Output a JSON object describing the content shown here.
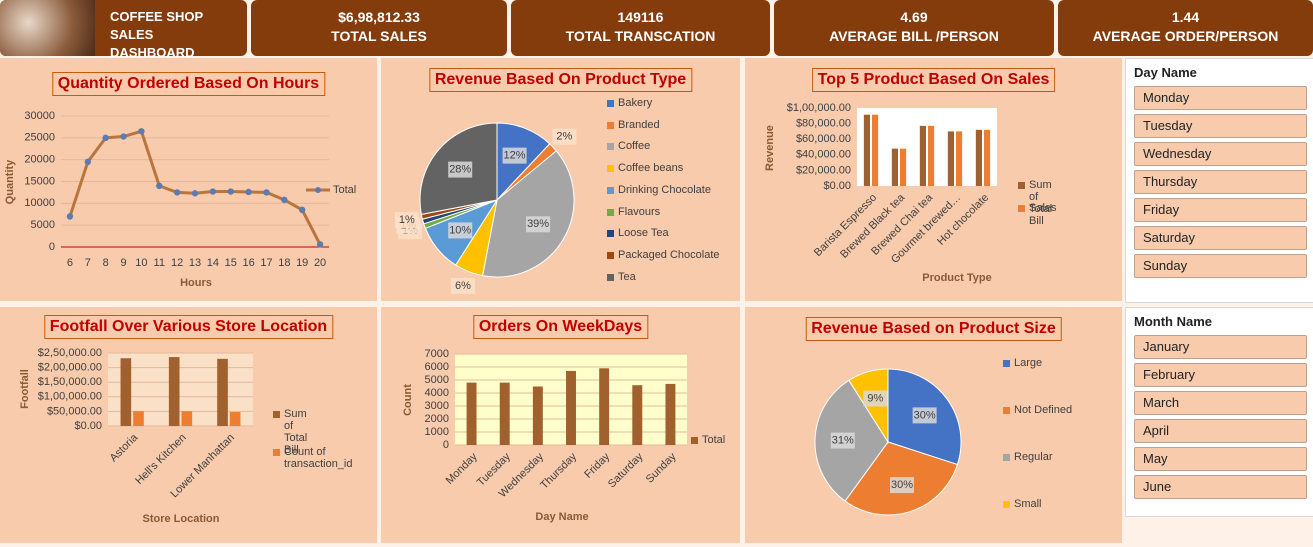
{
  "header": {
    "title": "COFFEE SHOP SALES DASHBOARD"
  },
  "kpis": [
    {
      "value": "$6,98,812.33",
      "label": "TOTAL SALES"
    },
    {
      "value": "149116",
      "label": "TOTAL TRANSCATION"
    },
    {
      "value": "4.69",
      "label": "AVERAGE BILL /PERSON"
    },
    {
      "value": "1.44",
      "label": "AVERAGE ORDER/PERSON"
    }
  ],
  "slicers": [
    {
      "title": "Day Name",
      "items": [
        "Monday",
        "Tuesday",
        "Wednesday",
        "Thursday",
        "Friday",
        "Saturday",
        "Sunday"
      ]
    },
    {
      "title": "Month Name",
      "items": [
        "January",
        "February",
        "March",
        "April",
        "May",
        "June"
      ]
    }
  ],
  "chart_data": [
    {
      "type": "line",
      "title": "Quantity Ordered Based On Hours",
      "x_label": "Hours",
      "y_label": "Quantity",
      "x": [
        6,
        7,
        8,
        9,
        10,
        11,
        12,
        13,
        14,
        15,
        16,
        17,
        18,
        19,
        20
      ],
      "series": [
        {
          "name": "Total",
          "color": "#b8763e",
          "marker_color": "#5b7bb3",
          "values": [
            7000,
            19500,
            25000,
            25300,
            26500,
            14000,
            12500,
            12300,
            12700,
            12700,
            12600,
            12500,
            10800,
            8500,
            600
          ]
        }
      ],
      "xlim": [
        5.5,
        20.5
      ],
      "xticks": [
        6,
        7,
        8,
        9,
        10,
        11,
        12,
        13,
        14,
        15,
        16,
        17,
        18,
        19,
        20
      ],
      "ylim": [
        0,
        30000
      ],
      "yticks": [
        0,
        5000,
        10000,
        15000,
        20000,
        25000,
        30000
      ],
      "grid": true,
      "legend": "right"
    },
    {
      "type": "pie",
      "title": "Revenue Based On Product Type",
      "categories": [
        "Bakery",
        "Branded",
        "Coffee",
        "Coffee beans",
        "Drinking Chocolate",
        "Flavours",
        "Loose Tea",
        "Packaged Chocolate",
        "Tea"
      ],
      "values": [
        12,
        2,
        39,
        6,
        10,
        1,
        1,
        1,
        28
      ],
      "value_labels": [
        "12%",
        "2%",
        "39%",
        "6%",
        "10%",
        "1%",
        "1%",
        "1%",
        "28%"
      ],
      "colors": [
        "#4472c4",
        "#ed7d31",
        "#a5a5a5",
        "#ffc000",
        "#5b9bd5",
        "#70ad47",
        "#264478",
        "#9e480e",
        "#636363"
      ],
      "legend": "right"
    },
    {
      "type": "bar",
      "title": "Top 5 Product Based On Sales",
      "x_label": "Product Type",
      "y_label": "Revenue",
      "categories": [
        "Barista Espresso",
        "Brewed Black tea",
        "Brewed Chai tea",
        "Gourmet brewed…",
        "Hot chocolate"
      ],
      "series": [
        {
          "name": "Sum of Total Bill",
          "color": "#a0612e",
          "values": [
            91400,
            47900,
            77100,
            70000,
            72000
          ]
        },
        {
          "name": "Sales",
          "color": "#ed7d31",
          "values": [
            91400,
            47900,
            77100,
            70000,
            72000
          ]
        }
      ],
      "ylim": [
        0,
        100000
      ],
      "yticks": [
        {
          "value": 0,
          "label": "$0.00"
        },
        {
          "value": 20000,
          "label": "$20,000.00"
        },
        {
          "value": 40000,
          "label": "$40,000.00"
        },
        {
          "value": 60000,
          "label": "$60,000.00"
        },
        {
          "value": 80000,
          "label": "$80,000.00"
        },
        {
          "value": 100000,
          "label": "$1,00,000.00"
        }
      ],
      "grid": false,
      "legend": "right",
      "plot_color": "#ffffff"
    },
    {
      "type": "bar",
      "title": "Footfall Over Various Store Location",
      "x_label": "Store Location",
      "y_label": "Footfall",
      "categories": [
        "Astoria",
        "Hell's Kitchen",
        "Lower Manhattan"
      ],
      "series": [
        {
          "name": "Sum of Total Bill",
          "color": "#a0612e",
          "values": [
            232000,
            236000,
            230000
          ]
        },
        {
          "name": "Count of transaction_id",
          "color": "#ed7d31",
          "values": [
            50600,
            50700,
            47800
          ]
        }
      ],
      "ylim": [
        0,
        250000
      ],
      "yticks": [
        {
          "value": 0,
          "label": "$0.00"
        },
        {
          "value": 50000,
          "label": "$50,000.00"
        },
        {
          "value": 100000,
          "label": "$1,00,000.00"
        },
        {
          "value": 150000,
          "label": "$1,50,000.00"
        },
        {
          "value": 200000,
          "label": "$2,00,000.00"
        },
        {
          "value": 250000,
          "label": "$2,50,000.00"
        }
      ],
      "grid": true,
      "legend": "right",
      "plot_color": "#fbe0c8"
    },
    {
      "type": "bar",
      "title": "Orders On WeekDays",
      "x_label": "Day Name",
      "y_label": "Count",
      "categories": [
        "Monday",
        "Tuesday",
        "Wednesday",
        "Thursday",
        "Friday",
        "Saturday",
        "Sunday"
      ],
      "series": [
        {
          "name": "Total",
          "color": "#a0612e",
          "values": [
            4800,
            4800,
            4500,
            5700,
            5900,
            4600,
            4700
          ]
        }
      ],
      "ylim": [
        0,
        7000
      ],
      "yticks": [
        0,
        1000,
        2000,
        3000,
        4000,
        5000,
        6000,
        7000
      ],
      "grid": true,
      "legend": "right",
      "plot_color": "#ffffcc"
    },
    {
      "type": "pie",
      "title": "Revenue Based on Product Size",
      "categories": [
        "Large",
        "Not Defined",
        "Regular",
        "Small"
      ],
      "values": [
        30,
        30,
        31,
        9
      ],
      "value_labels": [
        "30%",
        "30%",
        "31%",
        "9%"
      ],
      "colors": [
        "#4472c4",
        "#ed7d31",
        "#a5a5a5",
        "#ffc000"
      ],
      "legend": "right"
    }
  ]
}
